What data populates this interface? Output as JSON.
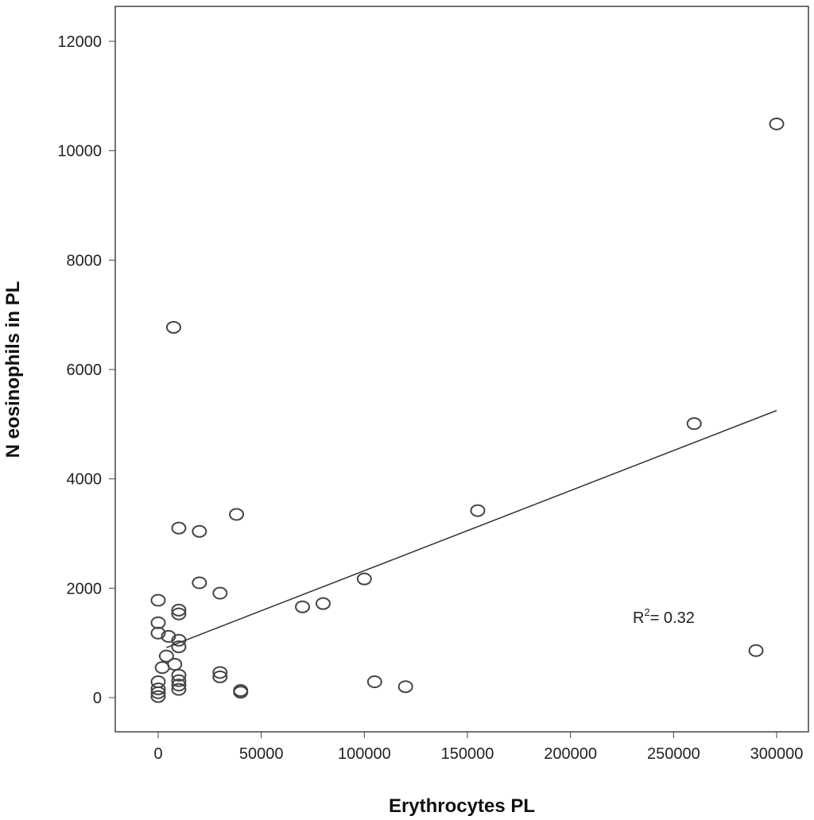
{
  "chart_data": {
    "type": "scatter",
    "xlabel": "Erythrocytes PL",
    "ylabel": "N eosinophils in PL",
    "xlim": [
      -10000,
      315000
    ],
    "ylim": [
      -700,
      12600
    ],
    "xticks": [
      0,
      50000,
      100000,
      150000,
      200000,
      250000,
      300000
    ],
    "yticks": [
      0,
      2000,
      4000,
      6000,
      8000,
      10000,
      12000
    ],
    "grid": false,
    "annotation": {
      "text": "R",
      "sup": "2",
      "rest": "= 0.32"
    },
    "fit_line": {
      "x": [
        4000,
        300000
      ],
      "y": [
        915,
        5250
      ]
    },
    "points": [
      [
        7500,
        6770
      ],
      [
        300000,
        10490
      ],
      [
        260000,
        5010
      ],
      [
        155000,
        3420
      ],
      [
        10000,
        3100
      ],
      [
        20000,
        3040
      ],
      [
        38000,
        3350
      ],
      [
        20000,
        2100
      ],
      [
        30000,
        1910
      ],
      [
        100000,
        2170
      ],
      [
        70000,
        1660
      ],
      [
        80000,
        1720
      ],
      [
        290000,
        860
      ],
      [
        105000,
        290
      ],
      [
        120000,
        200
      ],
      [
        40000,
        100
      ],
      [
        40000,
        130
      ],
      [
        30000,
        460
      ],
      [
        30000,
        380
      ],
      [
        0,
        1780
      ],
      [
        10000,
        1600
      ],
      [
        10000,
        1530
      ],
      [
        0,
        1370
      ],
      [
        0,
        1180
      ],
      [
        5000,
        1120
      ],
      [
        10000,
        1050
      ],
      [
        10000,
        930
      ],
      [
        4000,
        760
      ],
      [
        2000,
        550
      ],
      [
        8000,
        610
      ],
      [
        0,
        290
      ],
      [
        0,
        160
      ],
      [
        0,
        90
      ],
      [
        0,
        20
      ],
      [
        10000,
        410
      ],
      [
        10000,
        310
      ],
      [
        10000,
        230
      ],
      [
        10000,
        150
      ]
    ]
  }
}
